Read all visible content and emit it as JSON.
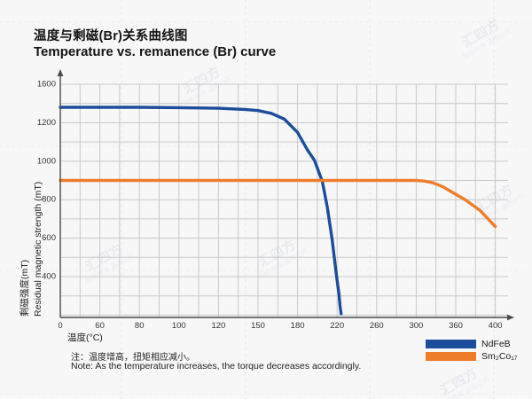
{
  "header": {
    "title_cn": "温度与剩磁(Br)关系曲线图",
    "title_en": "Temperature vs. remanence (Br) curve"
  },
  "watermark": {
    "line1": "汇四方",
    "line2": "版权所有 盗图必究"
  },
  "chart_data": {
    "type": "line",
    "title": "Temperature vs. remanence (Br) curve",
    "xlabel": "温度(°C)",
    "ylabel_cn": "剩磁强度(mT)",
    "ylabel_en": "Residual magnetic strength (mT)",
    "x_ticks": [
      0,
      60,
      80,
      100,
      120,
      150,
      180,
      220,
      260,
      300,
      360,
      400
    ],
    "y_ticks": [
      1600,
      1200,
      1000,
      800,
      600,
      400
    ],
    "grid": true,
    "legend_position": "bottom-right",
    "axis_note": "x tick spacing is uniform despite non-uniform temperature steps; y labels 1600→1200 span equals 200-unit spans below",
    "series": [
      {
        "name": "NdFeB",
        "color": "#1c4d9b",
        "points": [
          [
            0,
            1360
          ],
          [
            60,
            1360
          ],
          [
            80,
            1360
          ],
          [
            100,
            1357
          ],
          [
            120,
            1350
          ],
          [
            140,
            1338
          ],
          [
            150,
            1326
          ],
          [
            160,
            1298
          ],
          [
            170,
            1238
          ],
          [
            180,
            1150
          ],
          [
            190,
            1058
          ],
          [
            197,
            1005
          ],
          [
            205,
            895
          ],
          [
            210,
            762
          ],
          [
            215,
            592
          ],
          [
            218,
            462
          ],
          [
            220,
            360
          ],
          [
            222,
            212
          ],
          [
            223,
            95
          ],
          [
            224,
            15
          ]
        ]
      },
      {
        "name": "Sm₂Co₁₇",
        "color": "#ee7d2b",
        "points": [
          [
            0,
            900
          ],
          [
            60,
            900
          ],
          [
            100,
            900
          ],
          [
            150,
            900
          ],
          [
            200,
            900
          ],
          [
            250,
            900
          ],
          [
            300,
            900
          ],
          [
            312,
            897
          ],
          [
            325,
            888
          ],
          [
            340,
            868
          ],
          [
            355,
            838
          ],
          [
            370,
            798
          ],
          [
            385,
            742
          ],
          [
            400,
            660
          ]
        ]
      }
    ]
  },
  "note": {
    "cn": "注：温度增高，扭矩相应减小。",
    "en": "Note: As the temperature increases, the torque decreases accordingly."
  },
  "legend": {
    "items": [
      {
        "label": "NdFeB",
        "color": "#1c4d9b"
      },
      {
        "label": "Sm₂Co₁₇",
        "color": "#ee7d2b"
      }
    ]
  }
}
